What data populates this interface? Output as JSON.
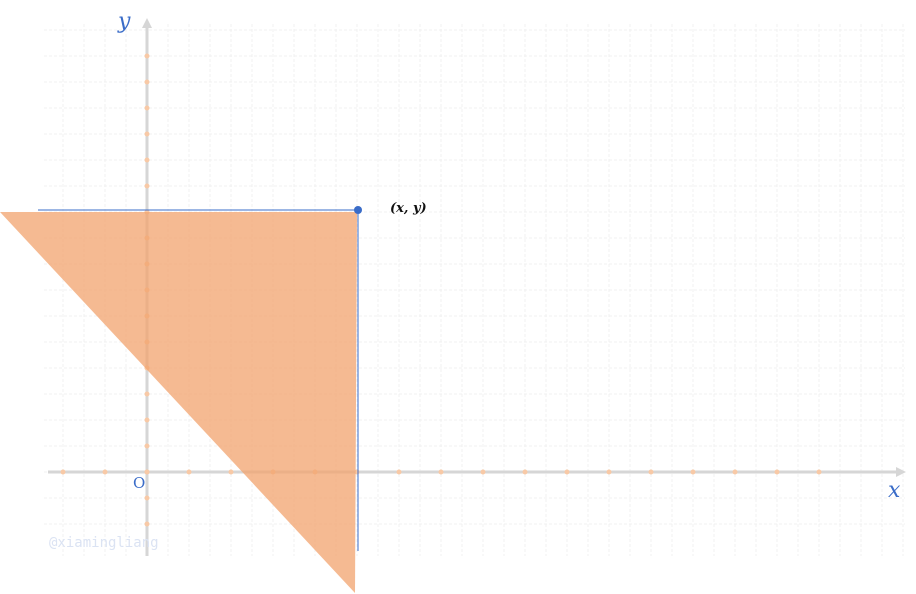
{
  "axes": {
    "x_label": "x",
    "y_label": "y",
    "origin_label": "O"
  },
  "point": {
    "label": "(x, y)",
    "color": "#3a6cc8"
  },
  "region": {
    "fill": "#f2a36e",
    "opacity": 0.75
  },
  "watermark": "@xiamingliang",
  "colors": {
    "axis": "#d6d6d6",
    "tick": "#f8c9a6",
    "grid": "#f0f0f0",
    "guide": "#3a6cc8"
  }
}
